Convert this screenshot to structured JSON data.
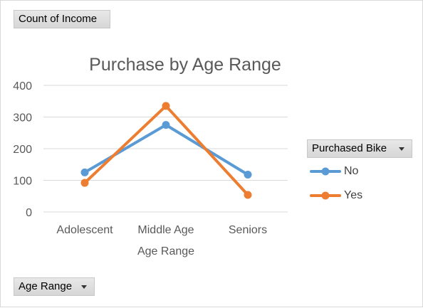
{
  "pivot": {
    "values_field": "Count of Income",
    "axis_field": "Age Range",
    "legend_field": "Purchased Bike"
  },
  "colors": {
    "No": "#5b9bd5",
    "Yes": "#ed7d31",
    "grid": "#d9d9d9",
    "text": "#595959"
  },
  "chart_data": {
    "type": "line",
    "title": "Purchase by Age Range",
    "xlabel": "Age Range",
    "ylabel": "",
    "categories": [
      "Adolescent",
      "Middle Age",
      "Seniors"
    ],
    "ylim": [
      0,
      400
    ],
    "yticks": [
      0,
      100,
      200,
      300,
      400
    ],
    "grid": true,
    "legend_position": "right",
    "series": [
      {
        "name": "No",
        "values": [
          125,
          275,
          118
        ]
      },
      {
        "name": "Yes",
        "values": [
          92,
          335,
          54
        ]
      }
    ]
  }
}
